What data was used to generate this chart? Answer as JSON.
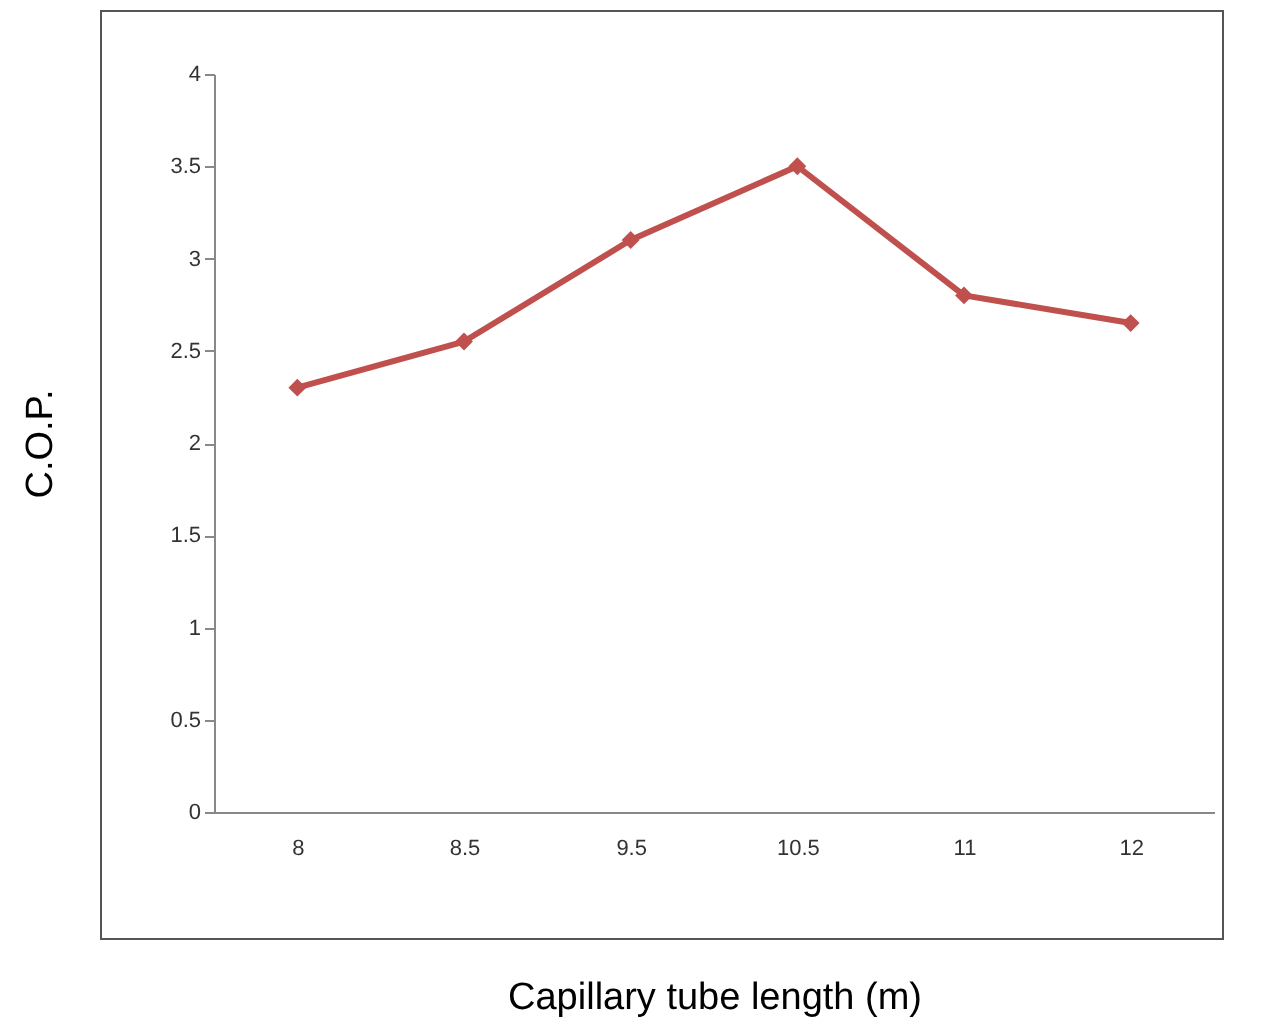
{
  "chart_data": {
    "type": "line",
    "xlabel": "Capillary tube length (m)",
    "ylabel": "C.O.P.",
    "categories": [
      "8",
      "8.5",
      "9.5",
      "10.5",
      "11",
      "12"
    ],
    "series": [
      {
        "color": "#c0504d",
        "values": [
          2.3,
          2.55,
          3.1,
          3.5,
          2.8,
          2.65
        ]
      }
    ],
    "ylim": [
      0,
      4
    ],
    "yticks": [
      0,
      0.5,
      1,
      1.5,
      2,
      2.5,
      3,
      3.5,
      4
    ],
    "grid": false,
    "legend": false,
    "marker": "diamond",
    "line_style": "solid"
  }
}
